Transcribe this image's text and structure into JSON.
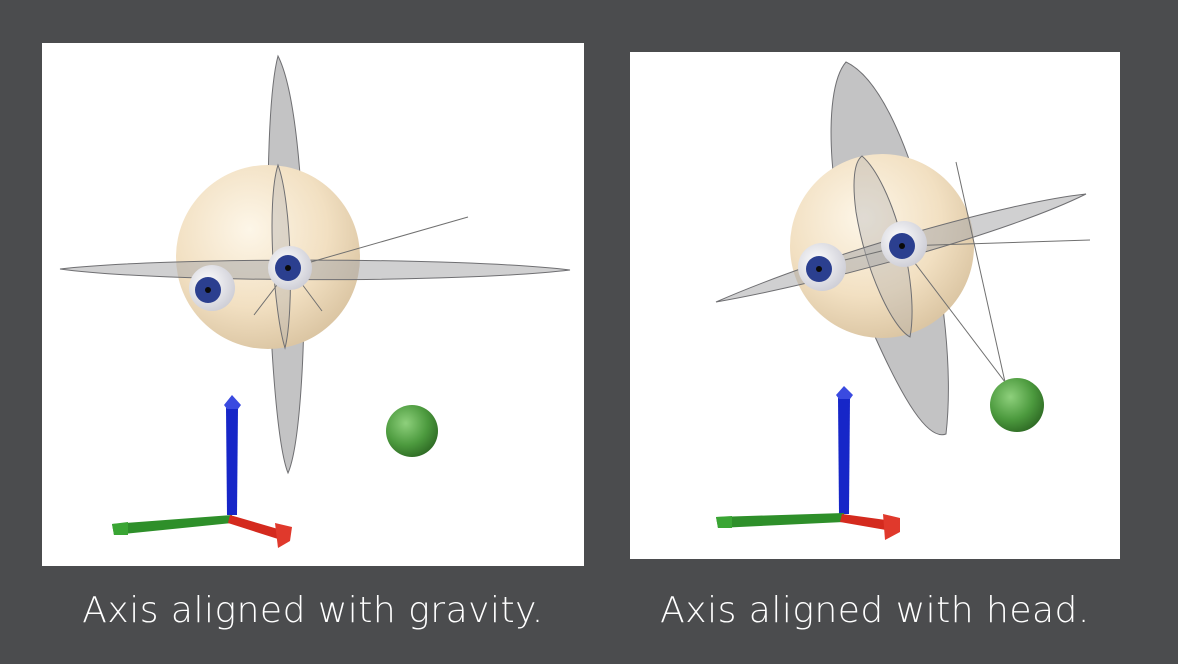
{
  "figure": {
    "left_panel": {
      "caption": "Axis aligned with gravity.",
      "colors": {
        "background": "#ffffff",
        "head": "#f0e0c4",
        "iris": "#2b3f8f",
        "target": "#4c9a3e"
      }
    },
    "right_panel": {
      "caption": "Axis aligned with head.",
      "colors": {
        "background": "#ffffff",
        "head": "#f0e0c4",
        "iris": "#2b3f8f",
        "target": "#4c9a3e"
      }
    },
    "axis_colors": {
      "x": "#d42a1e",
      "y": "#2e8f2a",
      "z": "#1626c8"
    },
    "page_background": "#4b4c4e"
  }
}
